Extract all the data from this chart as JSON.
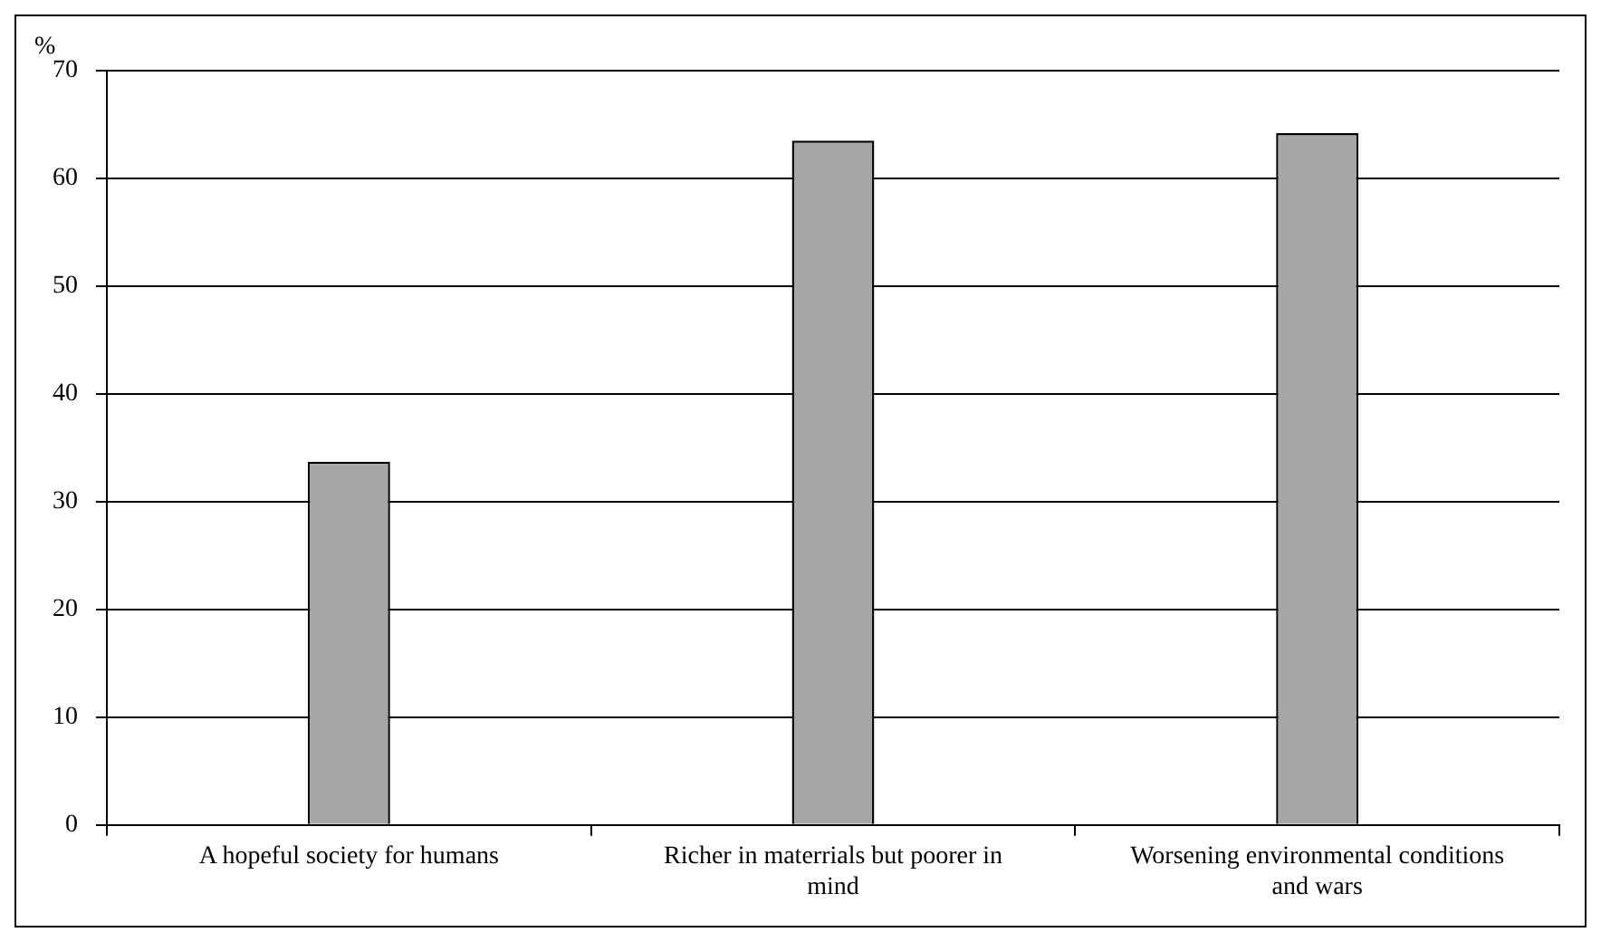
{
  "chart_data": {
    "type": "bar",
    "ylabel": "%",
    "categories": [
      "A hopeful society for humans",
      "Richer in materrials but poorer in mind",
      "Worsening environmental conditions and wars"
    ],
    "values": [
      33.7,
      63.5,
      64.2
    ],
    "color": "#a6a6a6",
    "ylim": [
      0,
      70
    ],
    "yticks": [
      0,
      10,
      20,
      30,
      40,
      50,
      60,
      70
    ],
    "grid": "y",
    "legend": false
  }
}
